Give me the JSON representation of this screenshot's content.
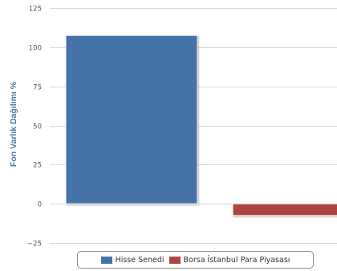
{
  "chart_data": {
    "type": "bar",
    "title": "",
    "xlabel": "",
    "ylabel": "Fon Varlık Dağılımı %",
    "ylim": [
      -25,
      125
    ],
    "yticks": [
      -25,
      0,
      25,
      50,
      75,
      100,
      125
    ],
    "grid": true,
    "legend_position": "bottom",
    "series": [
      {
        "name": "Hisse Senedi",
        "values": [
          107.5
        ],
        "color": "#4572A7"
      },
      {
        "name": "Borsa İstanbul Para Piyasası",
        "values": [
          -7.5
        ],
        "color": "#AA4643"
      }
    ]
  }
}
